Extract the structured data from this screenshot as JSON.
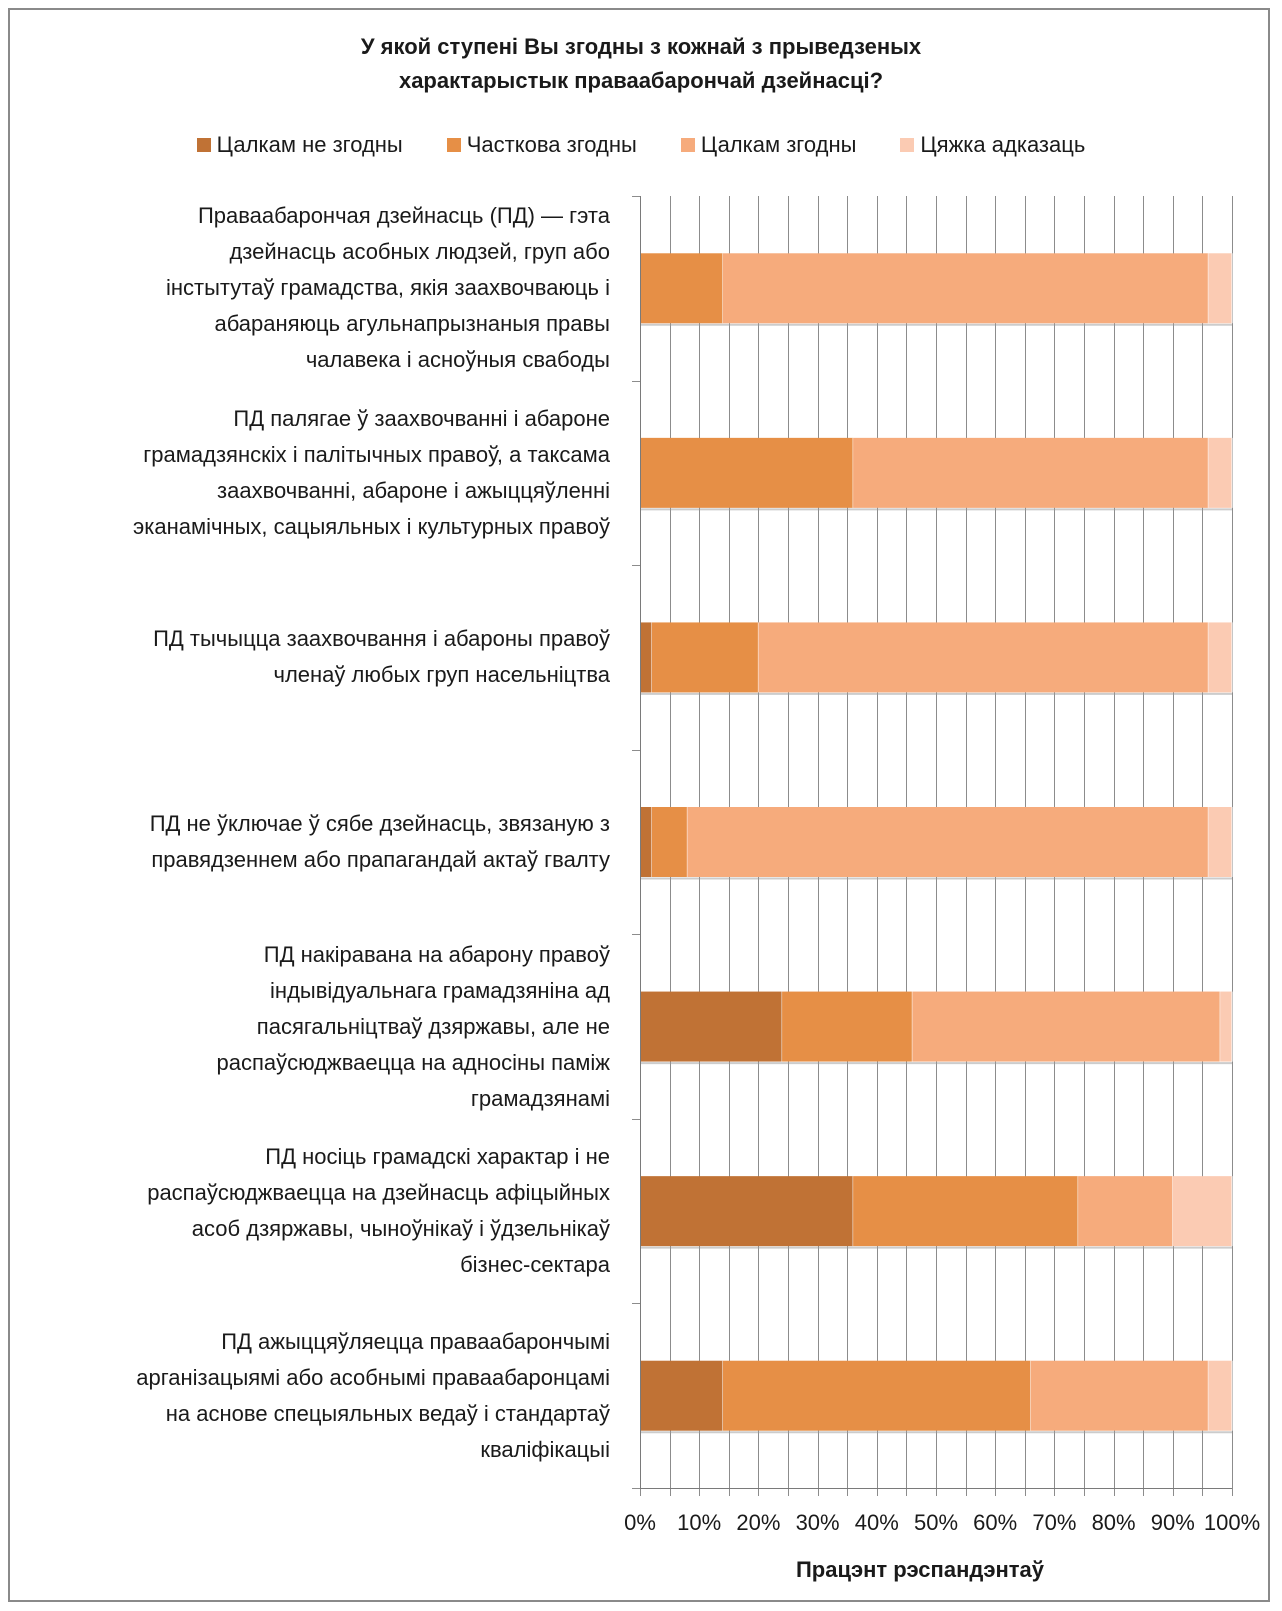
{
  "chart_data": {
    "type": "bar",
    "orientation": "horizontal",
    "stacked": "percent",
    "title_lines": [
      "У якой ступені Вы згодны з кожнай з прыведзеных",
      "характарыстык праваабарончай  дзейнасці?"
    ],
    "xlabel": "Працэнт рэспандэнтаў",
    "xlim": [
      0,
      100
    ],
    "x_ticks": [
      "0%",
      "10%",
      "20%",
      "30%",
      "40%",
      "50%",
      "60%",
      "70%",
      "80%",
      "90%",
      "100%"
    ],
    "grid": true,
    "legend_position": "top",
    "categories": [
      "Праваабарончая дзейнасць (ПД) — гэта дзейнасць асобных людзей, груп або інстытутаў грамадства, якія заахвочваюць і абараняюць агульнапрызнаныя правы чалавека і асноўныя свабоды",
      "ПД палягае ў заахвочванні і абароне грамадзянскіх і палітычных правоў, а таксама заахвочванні, абароне і ажыццяўленні эканамічных, сацыяльных і культурных правоў",
      "ПД тычыцца заахвочвання і абароны правоў членаў любых груп насельніцтва",
      "ПД не ўключае ў сябе дзейнасць, звязаную з правядзеннем або прапагандай актаў гвалту",
      "ПД накіравана на абарону правоў індывідуальнага грамадзяніна ад пасягальніцтваў дзяржавы, але не распаўсюджваецца на адносіны паміж грамадзянамі",
      "ПД носіць грамадскі характар і не распаўсюджваецца на дзейнасць афіцыйных асоб дзяржавы, чыноўнікаў і ўдзельнікаў бізнес-сектара",
      "ПД ажыццяўляецца праваабарончымі арганізацыямі або асобнымі праваабаронцамі на аснове спецыяльных ведаў і стандартаў кваліфікацыі"
    ],
    "category_lines": [
      [
        "Праваабарончая дзейнасць (ПД) — гэта",
        "дзейнасць асобных людзей, груп або",
        "інстытутаў грамадства, якія заахвочваюць і",
        "абараняюць агульнапрызнаныя правы",
        "чалавека і асноўныя свабоды"
      ],
      [
        "ПД палягае ў заахвочванні і абароне",
        "грамадзянскіх і палітычных правоў, а таксама",
        "заахвочванні, абароне і ажыццяўленні",
        "эканамічных, сацыяльных і культурных правоў"
      ],
      [
        "ПД тычыцца заахвочвання і абароны правоў",
        "членаў любых груп насельніцтва"
      ],
      [
        "ПД не ўключае ў сябе дзейнасць, звязаную з",
        "правядзеннем або прапагандай актаў гвалту"
      ],
      [
        "ПД накіравана на абарону правоў",
        "індывідуальнага грамадзяніна ад",
        "пасягальніцтваў дзяржавы, але не",
        "распаўсюджваецца на адносіны паміж",
        "грамадзянамі"
      ],
      [
        "ПД носіць грамадскі характар і не",
        "распаўсюджваецца на дзейнасць афіцыйных",
        "асоб дзяржавы, чыноўнікаў і ўдзельнікаў",
        "бізнес-сектара"
      ],
      [
        "ПД ажыццяўляецца праваабарончымі",
        "арганізацыямі або асобнымі праваабаронцамі",
        "на аснове спецыяльных ведаў і стандартаў",
        "кваліфікацыі"
      ]
    ],
    "series": [
      {
        "name": "Цалкам не згодны",
        "color": "#c07235",
        "values": [
          0,
          0,
          2,
          2,
          24,
          36,
          14
        ]
      },
      {
        "name": "Часткова згодны",
        "color": "#e68f46",
        "values": [
          14,
          36,
          18,
          6,
          22,
          38,
          52
        ]
      },
      {
        "name": "Цалкам згодны",
        "color": "#f6ab7c",
        "values": [
          82,
          60,
          76,
          88,
          52,
          16,
          30
        ]
      },
      {
        "name": "Цяжка адказаць",
        "color": "#fbcbb3",
        "values": [
          4,
          4,
          4,
          4,
          2,
          10,
          4
        ]
      }
    ]
  }
}
